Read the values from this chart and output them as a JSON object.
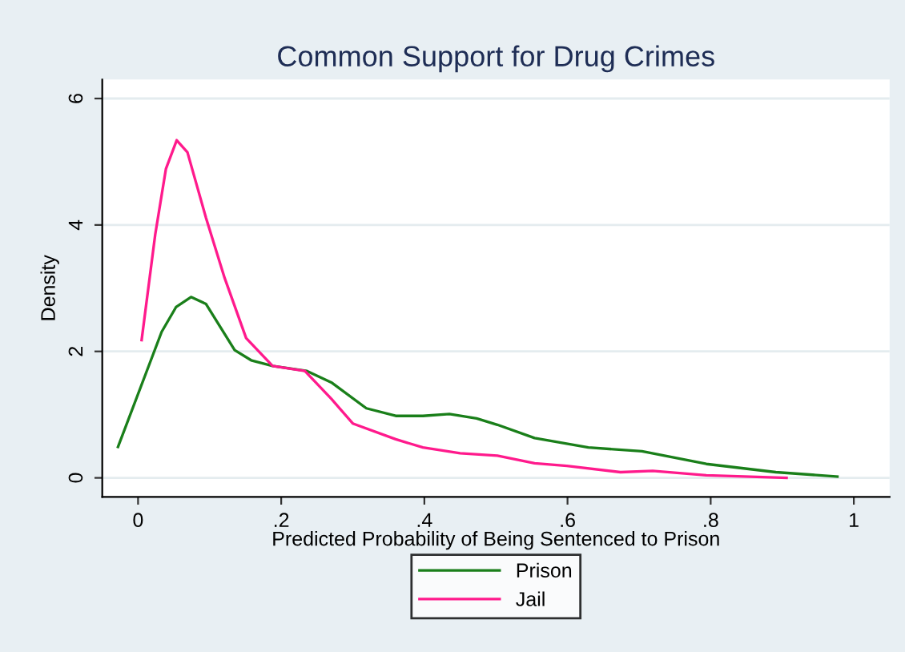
{
  "chart_data": {
    "type": "line",
    "title": "Common Support for Drug Crimes",
    "xlabel": "Predicted Probability of Being Sentenced to Prison",
    "ylabel": "Density",
    "xlim": [
      -0.05,
      1.05
    ],
    "xticks": [
      {
        "value": 0,
        "label": "0"
      },
      {
        "value": 0.2,
        "label": ".2"
      },
      {
        "value": 0.4,
        "label": ".4"
      },
      {
        "value": 0.6,
        "label": ".6"
      },
      {
        "value": 0.8,
        "label": ".8"
      },
      {
        "value": 1,
        "label": "1"
      }
    ],
    "ylim": [
      -0.3,
      6.3
    ],
    "yticks": [
      0,
      2,
      4,
      6
    ],
    "grid": "y",
    "legend": "bottom",
    "marker": "none",
    "line_style": "solid",
    "series": [
      {
        "name": "Prison",
        "color": "#1a7f1a",
        "x": [
          -0.028,
          0.033,
          0.053,
          0.074,
          0.095,
          0.135,
          0.158,
          0.188,
          0.236,
          0.27,
          0.319,
          0.36,
          0.398,
          0.435,
          0.473,
          0.502,
          0.554,
          0.629,
          0.704,
          0.794,
          0.891,
          0.977
        ],
        "values": [
          0.49,
          2.31,
          2.7,
          2.86,
          2.75,
          2.02,
          1.86,
          1.77,
          1.69,
          1.51,
          1.1,
          0.98,
          0.98,
          1.01,
          0.94,
          0.84,
          0.63,
          0.48,
          0.42,
          0.22,
          0.09,
          0.02
        ]
      },
      {
        "name": "Jail",
        "color": "#ff1a8c",
        "x": [
          0.005,
          0.024,
          0.039,
          0.054,
          0.069,
          0.095,
          0.121,
          0.151,
          0.188,
          0.233,
          0.27,
          0.3,
          0.36,
          0.398,
          0.45,
          0.502,
          0.554,
          0.599,
          0.674,
          0.719,
          0.794,
          0.906
        ],
        "values": [
          2.18,
          3.85,
          4.89,
          5.34,
          5.15,
          4.11,
          3.16,
          2.21,
          1.77,
          1.69,
          1.25,
          0.86,
          0.61,
          0.48,
          0.39,
          0.35,
          0.23,
          0.19,
          0.09,
          0.11,
          0.04,
          0.0
        ]
      }
    ]
  }
}
